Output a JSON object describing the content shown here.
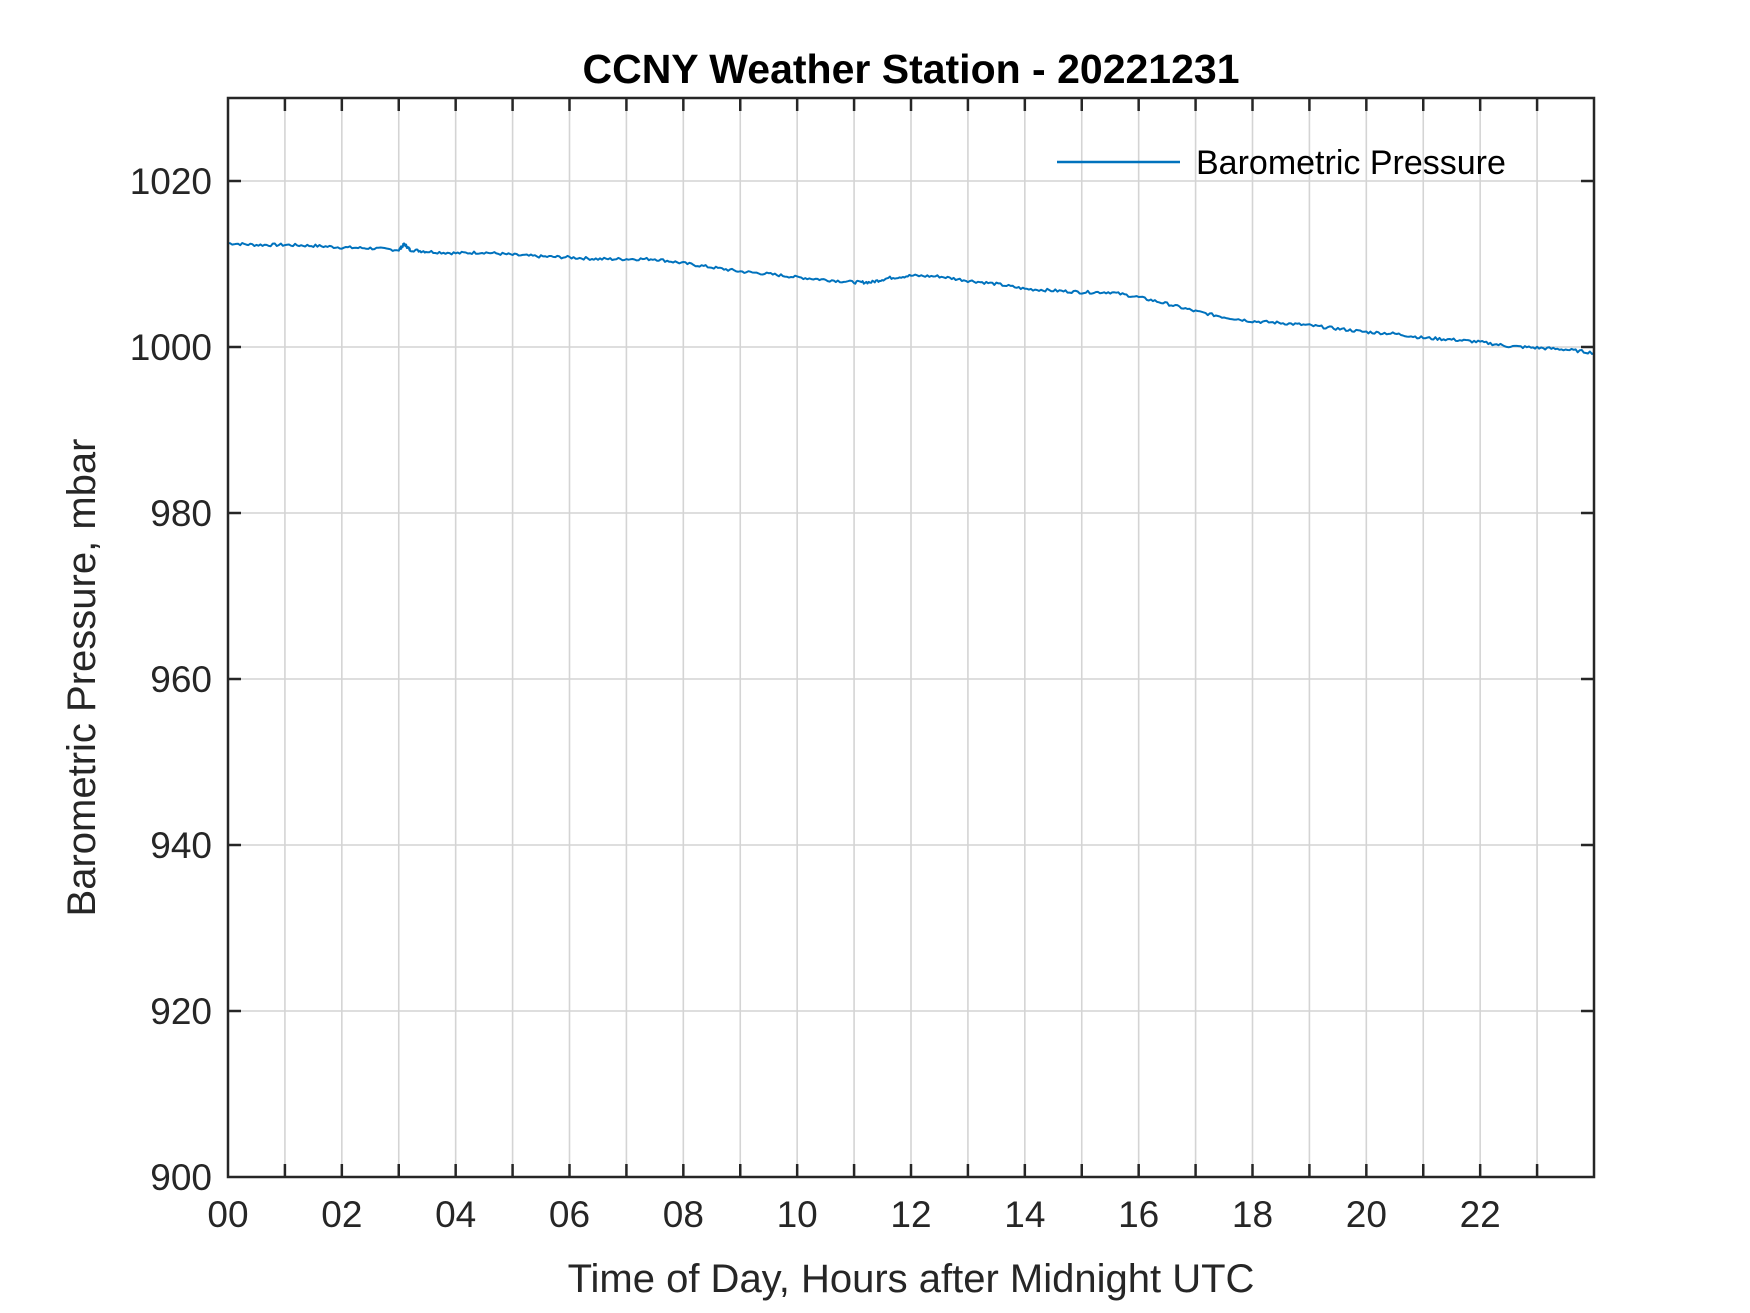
{
  "chart_data": {
    "type": "line",
    "title": "CCNY Weather Station - 20221231",
    "xlabel": "Time of Day, Hours after Midnight UTC",
    "ylabel": "Barometric Pressure, mbar",
    "xlim": [
      0,
      24
    ],
    "ylim": [
      900,
      1030
    ],
    "x_ticks": [
      0,
      2,
      4,
      6,
      8,
      10,
      12,
      14,
      16,
      18,
      20,
      22
    ],
    "x_tick_labels": [
      "00",
      "02",
      "04",
      "06",
      "08",
      "10",
      "12",
      "14",
      "16",
      "18",
      "20",
      "22"
    ],
    "x_minor_grid_step": 1,
    "y_ticks": [
      900,
      920,
      940,
      960,
      980,
      1000,
      1020
    ],
    "y_tick_labels": [
      "900",
      "920",
      "940",
      "960",
      "980",
      "1000",
      "1020"
    ],
    "grid": true,
    "legend_placement": "top-right",
    "series": [
      {
        "name": "Barometric Pressure",
        "color": "#0072BD",
        "x": [
          0,
          0.5,
          1,
          1.5,
          2,
          2.5,
          3,
          3.1,
          3.2,
          3.5,
          4,
          4.5,
          5,
          5.5,
          6,
          6.5,
          7,
          7.5,
          8,
          8.5,
          9,
          9.5,
          10,
          10.5,
          11,
          11.3,
          11.6,
          12,
          12.5,
          13,
          13.5,
          14,
          14.5,
          15,
          15.5,
          16,
          16.5,
          17,
          17.5,
          18,
          18.5,
          19,
          19.5,
          20,
          20.5,
          21,
          21.5,
          22,
          22.5,
          23,
          23.5,
          24
        ],
        "y": [
          1012.5,
          1012.3,
          1012.3,
          1012.2,
          1012.0,
          1011.9,
          1011.7,
          1012.4,
          1011.7,
          1011.5,
          1011.3,
          1011.4,
          1011.1,
          1010.9,
          1010.8,
          1010.6,
          1010.6,
          1010.6,
          1010.1,
          1009.6,
          1009.1,
          1008.8,
          1008.4,
          1008.1,
          1007.8,
          1007.8,
          1008.3,
          1008.6,
          1008.5,
          1008.0,
          1007.6,
          1007.0,
          1006.8,
          1006.6,
          1006.6,
          1006.0,
          1005.2,
          1004.3,
          1003.6,
          1003.1,
          1002.9,
          1002.6,
          1002.2,
          1001.8,
          1001.6,
          1001.1,
          1000.9,
          1000.6,
          1000.1,
          999.9,
          999.7,
          999.3
        ]
      }
    ]
  }
}
